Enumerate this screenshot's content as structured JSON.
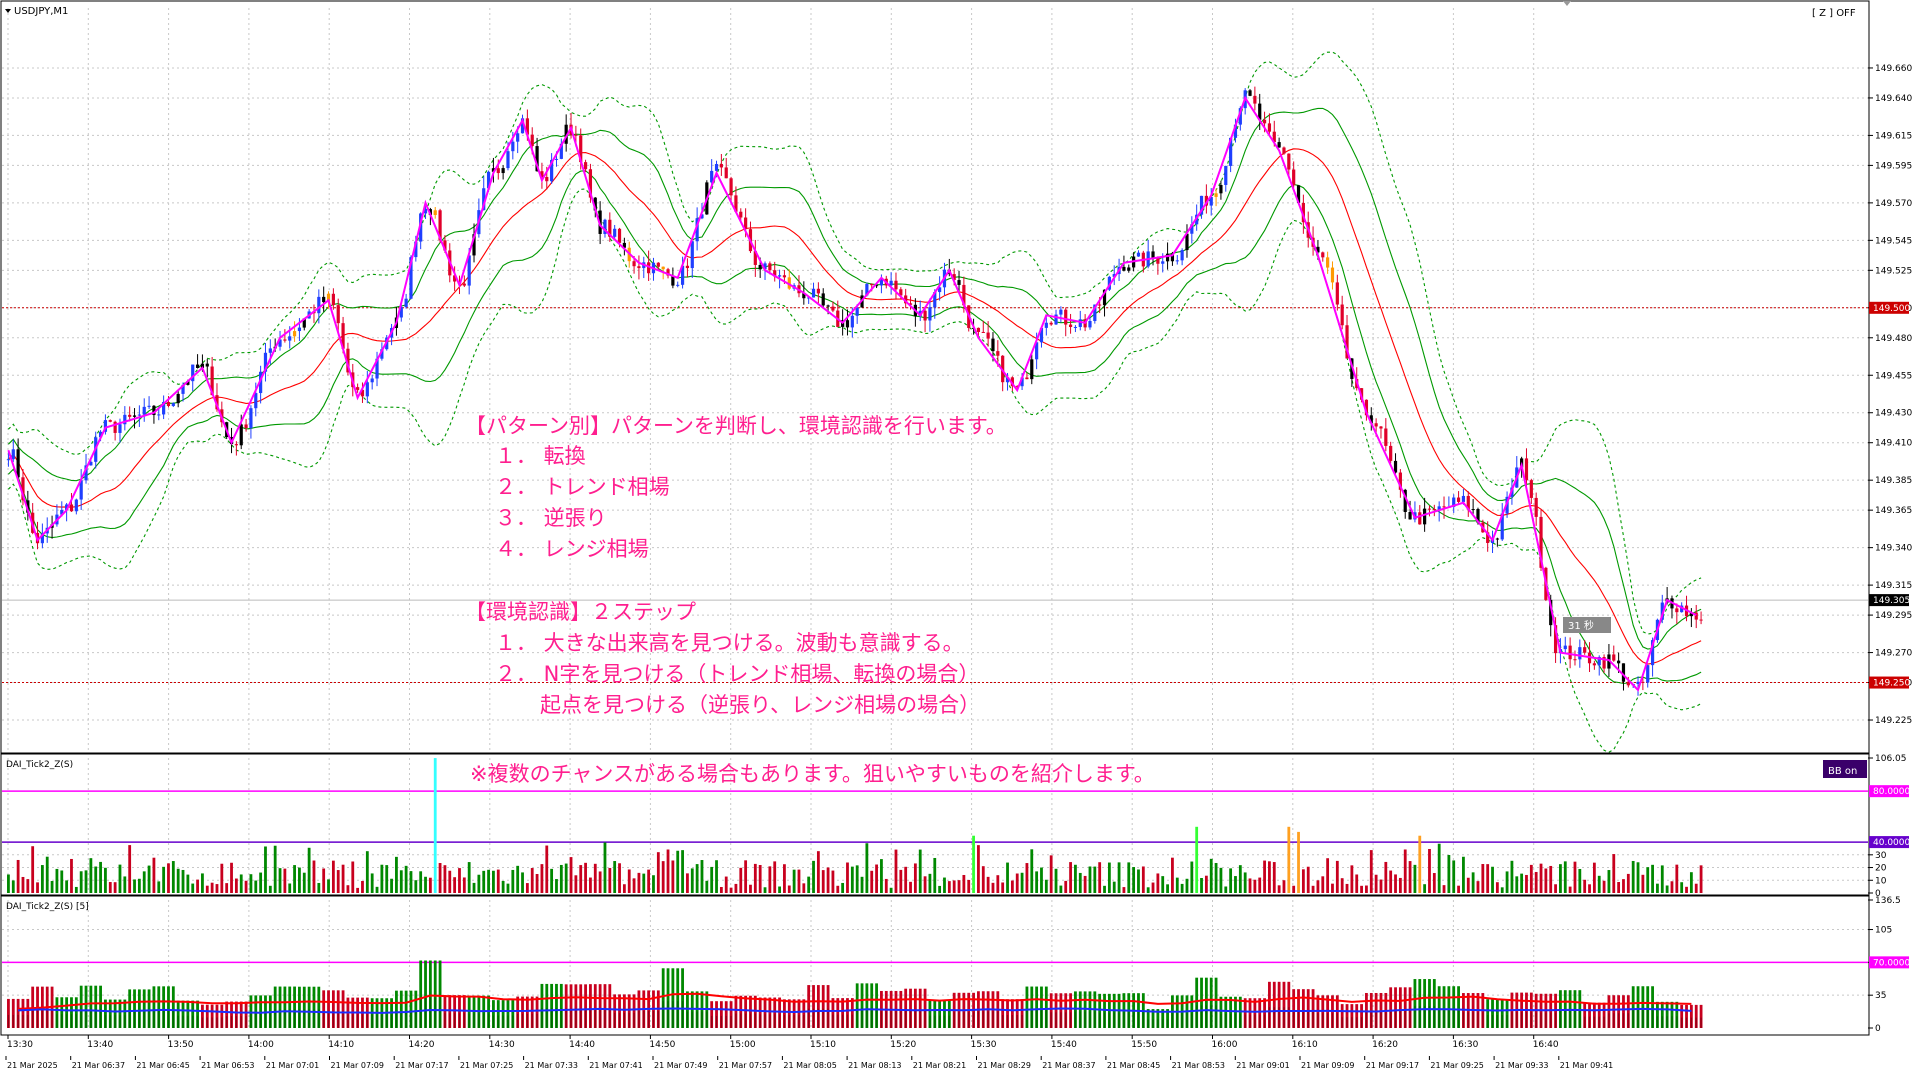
{
  "window": {
    "symbol_label": "USDJPY,M1",
    "z_status": "[ Z ] OFF",
    "timer_label": "31 秒"
  },
  "colors": {
    "bull_candle": "#1f3fff",
    "bear_candle": "#e0002a",
    "neutral_candle": "#000000",
    "orange_candle": "#ff9900",
    "bb_outer": "#009900",
    "bb_mid": "#ff0000",
    "zigzag": "#ff00ff",
    "note_text": "#ff1f8f",
    "vol_green": "#008800",
    "vol_red": "#c8001e",
    "vol_orange": "#ffa020",
    "vol_lime": "#33ff33",
    "vol_cyan": "#33ffff"
  },
  "annotation": {
    "heading1": "【パターン別】パターンを判断し、環境認識を行います。",
    "items1": [
      "１． 転換",
      "２． トレンド相場",
      "３． 逆張り",
      "４． レンジ相場"
    ],
    "heading2": "【環境認識】２ステップ",
    "items2": [
      "１． 大きな出来高を見つける。波動も意識する。",
      "２． N字を見つける（トレンド相場、転換の場合）",
      "起点を見つける（逆張り、レンジ相場の場合）"
    ],
    "footnote": "※複数のチャンスがある場合もあります。狙いやすいものを紹介します。"
  },
  "chart_data": [
    {
      "type": "candlestick",
      "panel": "main",
      "title": "USDJPY,M1",
      "y_axis": {
        "range": [
          149.205,
          149.7
        ],
        "ticks": [
          "149.660",
          "149.640",
          "149.615",
          "149.595",
          "149.570",
          "149.545",
          "149.525",
          "149.500",
          "149.480",
          "149.455",
          "149.430",
          "149.410",
          "149.385",
          "149.365",
          "149.340",
          "149.315",
          "149.295",
          "149.270",
          "149.250",
          "149.225"
        ]
      },
      "highlighted_levels": [
        {
          "value": "149.500",
          "color": "#cc0000",
          "style": "dotted"
        },
        {
          "value": "149.250",
          "color": "#cc0000",
          "style": "dotted"
        }
      ],
      "current_price": "149.305",
      "price_anchors": [
        [
          0,
          149.405
        ],
        [
          6,
          149.345
        ],
        [
          12,
          149.365
        ],
        [
          20,
          149.42
        ],
        [
          30,
          149.43
        ],
        [
          40,
          149.46
        ],
        [
          46,
          149.41
        ],
        [
          56,
          149.48
        ],
        [
          66,
          149.505
        ],
        [
          72,
          149.44
        ],
        [
          80,
          149.49
        ],
        [
          86,
          149.57
        ],
        [
          93,
          149.515
        ],
        [
          100,
          149.59
        ],
        [
          106,
          149.625
        ],
        [
          110,
          149.585
        ],
        [
          116,
          149.62
        ],
        [
          122,
          149.555
        ],
        [
          130,
          149.53
        ],
        [
          138,
          149.52
        ],
        [
          146,
          149.59
        ],
        [
          156,
          149.525
        ],
        [
          164,
          149.51
        ],
        [
          172,
          149.49
        ],
        [
          180,
          149.52
        ],
        [
          188,
          149.495
        ],
        [
          194,
          149.525
        ],
        [
          200,
          149.48
        ],
        [
          208,
          149.445
        ],
        [
          214,
          149.495
        ],
        [
          222,
          149.49
        ],
        [
          230,
          149.53
        ],
        [
          240,
          149.535
        ],
        [
          248,
          149.575
        ],
        [
          255,
          149.64
        ],
        [
          262,
          149.605
        ],
        [
          270,
          149.535
        ],
        [
          280,
          149.43
        ],
        [
          290,
          149.36
        ],
        [
          300,
          149.37
        ],
        [
          306,
          149.345
        ],
        [
          312,
          149.395
        ],
        [
          320,
          149.27
        ],
        [
          330,
          149.265
        ],
        [
          336,
          149.245
        ],
        [
          342,
          149.305
        ],
        [
          348,
          149.295
        ]
      ],
      "x_time_labels": [
        "21 Mar 2025",
        "21 Mar 06:37",
        "21 Mar 06:45",
        "21 Mar 06:53",
        "21 Mar 07:01",
        "21 Mar 07:09",
        "21 Mar 07:17",
        "21 Mar 07:25",
        "21 Mar 07:33",
        "21 Mar 07:41",
        "21 Mar 07:49",
        "21 Mar 07:57",
        "21 Mar 08:05",
        "21 Mar 08:13",
        "21 Mar 08:21",
        "21 Mar 08:29",
        "21 Mar 08:37",
        "21 Mar 08:45",
        "21 Mar 08:53",
        "21 Mar 09:01",
        "21 Mar 09:09",
        "21 Mar 09:17",
        "21 Mar 09:25",
        "21 Mar 09:33",
        "21 Mar 09:41"
      ],
      "indicators": [
        "Bollinger Bands (±1σ solid, ±2σ dotted, middle)",
        "ZigZag"
      ]
    },
    {
      "type": "bar",
      "panel": "sub1",
      "title": "DAI_Tick2_Z(S)",
      "badge": "BB on",
      "y_axis": {
        "range": [
          0,
          106.05
        ],
        "ticks": [
          "106.05",
          "30",
          "20",
          "10",
          "0"
        ]
      },
      "levels": [
        {
          "value": "80.0000",
          "color": "#ff00ff"
        },
        {
          "value": "40.0000",
          "color": "#6600cc"
        }
      ],
      "spikes": [
        {
          "bar": 88,
          "value": 106,
          "color": "cyan"
        },
        {
          "bar": 245,
          "value": 52,
          "color": "lime"
        },
        {
          "bar": 199,
          "value": 45,
          "color": "lime"
        },
        {
          "bar": 264,
          "value": 52,
          "color": "orange"
        },
        {
          "bar": 266,
          "value": 48,
          "color": "orange"
        },
        {
          "bar": 291,
          "value": 45,
          "color": "orange"
        }
      ]
    },
    {
      "type": "bar",
      "panel": "sub2",
      "title": "DAI_Tick2_Z(S) [5]",
      "y_axis": {
        "range": [
          0,
          136.5
        ],
        "ticks": [
          "136.5",
          "105",
          "70",
          "35",
          "0"
        ]
      },
      "levels": [
        {
          "value": "70.0000",
          "color": "#ff00ff"
        }
      ],
      "x_axis_ticks": [
        "13:30",
        "13:40",
        "13:50",
        "14:00",
        "14:10",
        "14:20",
        "14:30",
        "14:40",
        "14:50",
        "15:00",
        "15:10",
        "15:20",
        "15:30",
        "15:40",
        "15:50",
        "16:00",
        "16:10",
        "16:20",
        "16:30",
        "16:40"
      ]
    }
  ]
}
